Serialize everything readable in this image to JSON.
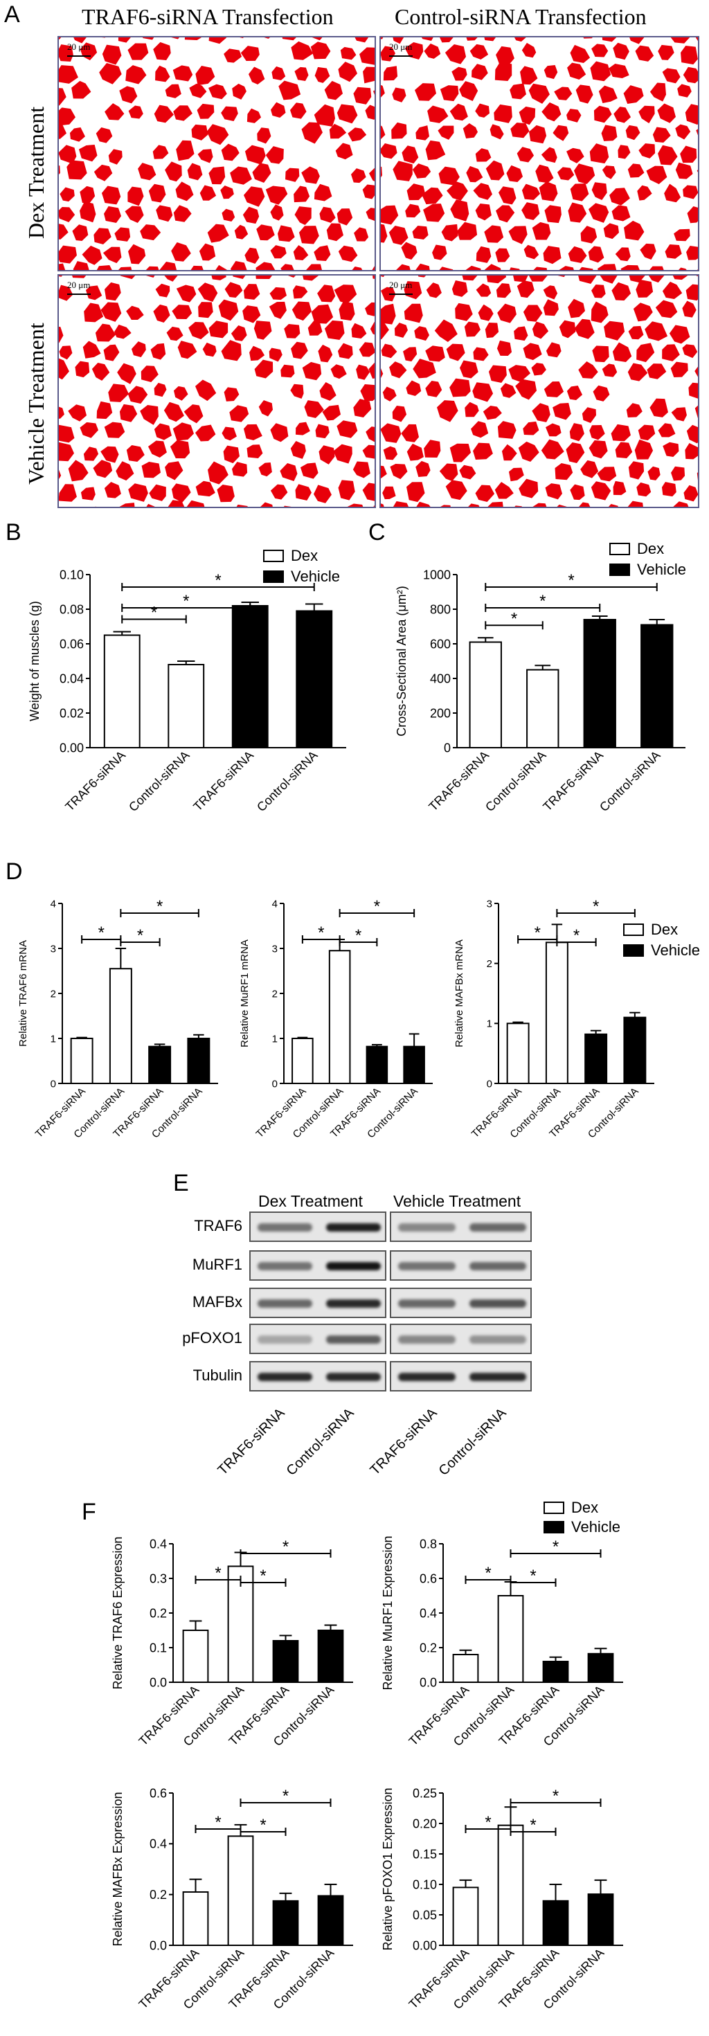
{
  "panel_a": {
    "letter": "A",
    "col1": "TRAF6-siRNA Transfection",
    "col2": "Control-siRNA Transfection",
    "row1": "Dex Treatment",
    "row2": "Vehicle Treatment",
    "scale": "20 μm"
  },
  "legend": {
    "dex": "Dex",
    "vehicle": "Vehicle"
  },
  "colors": {
    "dex_fill": "#ffffff",
    "vehicle_fill": "#000000",
    "muscle": "#e8000a",
    "stroke": "#000000"
  },
  "chart_data": [
    {
      "panel": "B",
      "type": "bar",
      "categories": [
        "TRAF6-siRNA",
        "Control-siRNA",
        "TRAF6-siRNA",
        "Control-siRNA"
      ],
      "series": [
        {
          "name": "Dex",
          "values": [
            0.065,
            0.048,
            null,
            null
          ]
        },
        {
          "name": "Vehicle",
          "values": [
            null,
            null,
            0.082,
            0.079
          ]
        }
      ],
      "errors": [
        0.002,
        0.002,
        0.002,
        0.004
      ],
      "ylabel": "Weight of muscles (g)",
      "ylim": [
        0,
        0.1
      ],
      "ticks": [
        "0.00",
        "0.02",
        "0.04",
        "0.06",
        "0.08",
        "0.10"
      ],
      "significance": [
        "*",
        "*",
        "*"
      ]
    },
    {
      "panel": "C",
      "type": "bar",
      "categories": [
        "TRAF6-siRNA",
        "Control-siRNA",
        "TRAF6-siRNA",
        "Control-siRNA"
      ],
      "series": [
        {
          "name": "Dex",
          "values": [
            610,
            450,
            null,
            null
          ]
        },
        {
          "name": "Vehicle",
          "values": [
            null,
            null,
            740,
            710
          ]
        }
      ],
      "errors": [
        25,
        25,
        20,
        30
      ],
      "ylabel": "Cross-Sectional Area (μm²)",
      "ylim": [
        0,
        1000
      ],
      "ticks": [
        "0",
        "200",
        "400",
        "600",
        "800",
        "1000"
      ],
      "significance": [
        "*",
        "*",
        "*"
      ]
    },
    {
      "panel": "D",
      "type": "bar",
      "categories": [
        "TRAF6-siRNA",
        "Control-siRNA",
        "TRAF6-siRNA",
        "Control-siRNA"
      ],
      "series": [
        {
          "name": "Dex",
          "values": [
            1.0,
            2.55,
            null,
            null
          ]
        },
        {
          "name": "Vehicle",
          "values": [
            null,
            null,
            0.82,
            1.0
          ]
        }
      ],
      "errors": [
        0.02,
        0.45,
        0.05,
        0.08
      ],
      "ylabel": "Relative TRAF6 mRNA",
      "ylim": [
        0,
        4
      ],
      "ticks": [
        "0",
        "1",
        "2",
        "3",
        "4"
      ],
      "significance": [
        "*",
        "*",
        "*"
      ]
    },
    {
      "type": "bar",
      "categories": [
        "TRAF6-siRNA",
        "Control-siRNA",
        "TRAF6-siRNA",
        "Control-siRNA"
      ],
      "series": [
        {
          "name": "Dex",
          "values": [
            1.0,
            2.95,
            null,
            null
          ]
        },
        {
          "name": "Vehicle",
          "values": [
            null,
            null,
            0.82,
            0.82
          ]
        }
      ],
      "errors": [
        0.02,
        0.25,
        0.04,
        0.28
      ],
      "ylabel": "Relative MuRF1 mRNA",
      "ylim": [
        0,
        4
      ],
      "ticks": [
        "0",
        "1",
        "2",
        "3",
        "4"
      ],
      "significance": [
        "*",
        "*",
        "*"
      ]
    },
    {
      "type": "bar",
      "categories": [
        "TRAF6-siRNA",
        "Control-siRNA",
        "TRAF6-siRNA",
        "Control-siRNA"
      ],
      "series": [
        {
          "name": "Dex",
          "values": [
            1.0,
            2.35,
            null,
            null
          ]
        },
        {
          "name": "Vehicle",
          "values": [
            null,
            null,
            0.82,
            1.1
          ]
        }
      ],
      "errors": [
        0.02,
        0.3,
        0.06,
        0.08
      ],
      "ylabel": "Relative MAFBx mRNA",
      "ylim": [
        0,
        3
      ],
      "ticks": [
        "0",
        "1",
        "2",
        "3"
      ],
      "significance": [
        "*",
        "*",
        "*"
      ]
    },
    {
      "panel": "F",
      "type": "bar",
      "categories": [
        "TRAF6-siRNA",
        "Control-siRNA",
        "TRAF6-siRNA",
        "Control-siRNA"
      ],
      "series": [
        {
          "name": "Dex",
          "values": [
            0.15,
            0.335,
            null,
            null
          ]
        },
        {
          "name": "Vehicle",
          "values": [
            null,
            null,
            0.12,
            0.15
          ]
        }
      ],
      "errors": [
        0.027,
        0.04,
        0.015,
        0.015
      ],
      "ylabel": "Relative TRAF6 Expression",
      "ylim": [
        0,
        0.4
      ],
      "ticks": [
        "0.0",
        "0.1",
        "0.2",
        "0.3",
        "0.4"
      ],
      "significance": [
        "*",
        "*",
        "*"
      ]
    },
    {
      "type": "bar",
      "categories": [
        "TRAF6-siRNA",
        "Control-siRNA",
        "TRAF6-siRNA",
        "Control-siRNA"
      ],
      "series": [
        {
          "name": "Dex",
          "values": [
            0.16,
            0.5,
            null,
            null
          ]
        },
        {
          "name": "Vehicle",
          "values": [
            null,
            null,
            0.12,
            0.165
          ]
        }
      ],
      "errors": [
        0.025,
        0.08,
        0.025,
        0.03
      ],
      "ylabel": "Relative MuRF1 Expression",
      "ylim": [
        0,
        0.8
      ],
      "ticks": [
        "0.0",
        "0.2",
        "0.4",
        "0.6",
        "0.8"
      ],
      "significance": [
        "*",
        "*",
        "*"
      ]
    },
    {
      "type": "bar",
      "categories": [
        "TRAF6-siRNA",
        "Control-siRNA",
        "TRAF6-siRNA",
        "Control-siRNA"
      ],
      "series": [
        {
          "name": "Dex",
          "values": [
            0.21,
            0.43,
            null,
            null
          ]
        },
        {
          "name": "Vehicle",
          "values": [
            null,
            null,
            0.175,
            0.195
          ]
        }
      ],
      "errors": [
        0.05,
        0.045,
        0.03,
        0.045
      ],
      "ylabel": "Relative MAFBx Expression",
      "ylim": [
        0,
        0.6
      ],
      "ticks": [
        "0.0",
        "0.2",
        "0.4",
        "0.6"
      ],
      "significance": [
        "*",
        "*",
        "*"
      ]
    },
    {
      "type": "bar",
      "categories": [
        "TRAF6-siRNA",
        "Control-siRNA",
        "TRAF6-siRNA",
        "Control-siRNA"
      ],
      "series": [
        {
          "name": "Dex",
          "values": [
            0.095,
            0.197,
            null,
            null
          ]
        },
        {
          "name": "Vehicle",
          "values": [
            null,
            null,
            0.073,
            0.084
          ]
        }
      ],
      "errors": [
        0.012,
        0.03,
        0.027,
        0.023
      ],
      "ylabel": "Relative pFOXO1 Expression",
      "ylim": [
        0,
        0.25
      ],
      "ticks": [
        "0.00",
        "0.05",
        "0.10",
        "0.15",
        "0.20",
        "0.25"
      ],
      "significance": [
        "*",
        "*",
        "*"
      ]
    }
  ],
  "blot": {
    "letter": "E",
    "head_dex": "Dex Treatment",
    "head_vehicle": "Vehicle Treatment",
    "rows": [
      "TRAF6",
      "MuRF1",
      "MAFBx",
      "pFOXO1",
      "Tubulin"
    ],
    "lanes": [
      "TRAF6-siRNA",
      "Control-siRNA",
      "TRAF6-siRNA",
      "Control-siRNA"
    ],
    "intensity": [
      [
        0.55,
        0.95,
        0.45,
        0.6
      ],
      [
        0.55,
        1.0,
        0.55,
        0.6
      ],
      [
        0.6,
        0.9,
        0.6,
        0.7
      ],
      [
        0.3,
        0.65,
        0.45,
        0.4
      ],
      [
        0.9,
        0.9,
        0.9,
        0.9
      ]
    ]
  }
}
